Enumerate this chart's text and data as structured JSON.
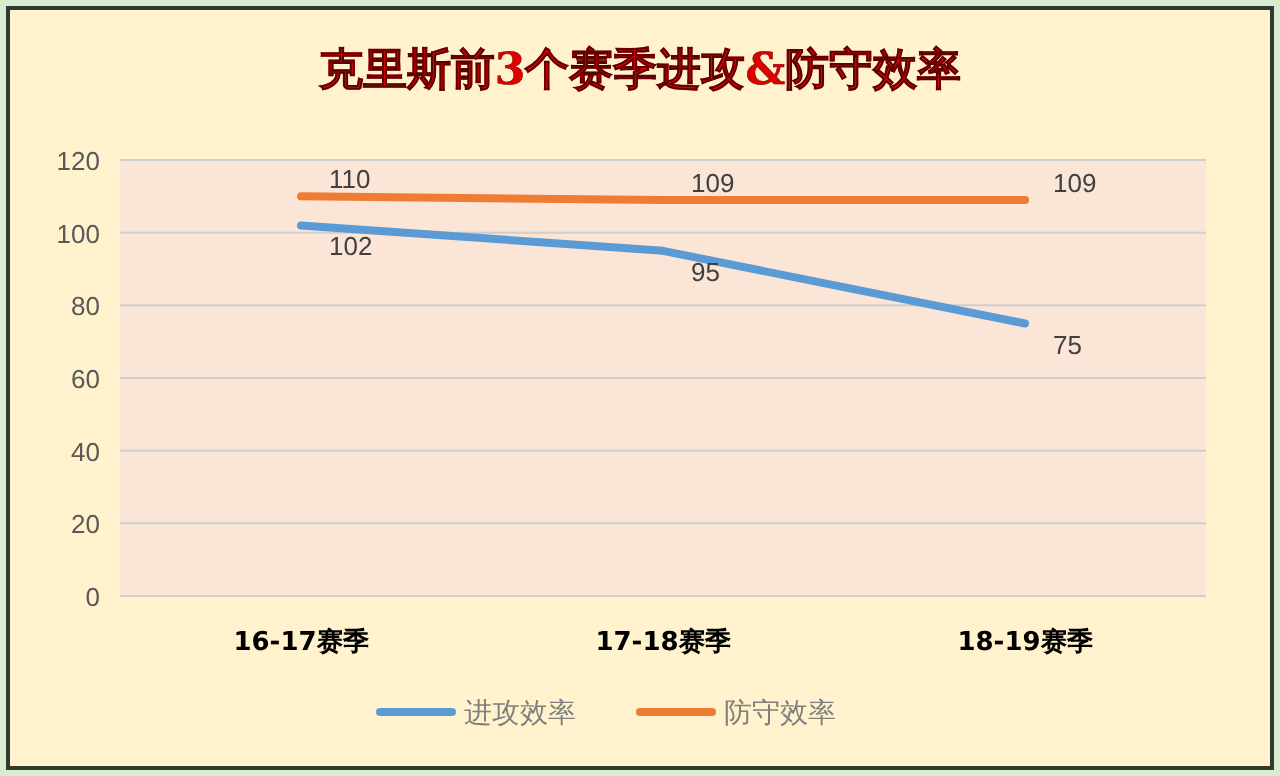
{
  "chart_data": {
    "type": "line",
    "title": "克里斯前3个赛季进攻&防守效率",
    "categories": [
      "16-17赛季",
      "17-18赛季",
      "18-19赛季"
    ],
    "series": [
      {
        "name": "进攻效率",
        "color": "#5b9bd5",
        "values": [
          102,
          95,
          75
        ]
      },
      {
        "name": "防守效率",
        "color": "#ed7d31",
        "values": [
          110,
          109,
          109
        ]
      }
    ],
    "ylim": [
      0,
      120
    ],
    "yticks": [
      0,
      20,
      40,
      60,
      80,
      100,
      120
    ],
    "grid": "y",
    "legend": "bottom",
    "data_labels": true,
    "marker": "none",
    "line_style": "solid"
  }
}
